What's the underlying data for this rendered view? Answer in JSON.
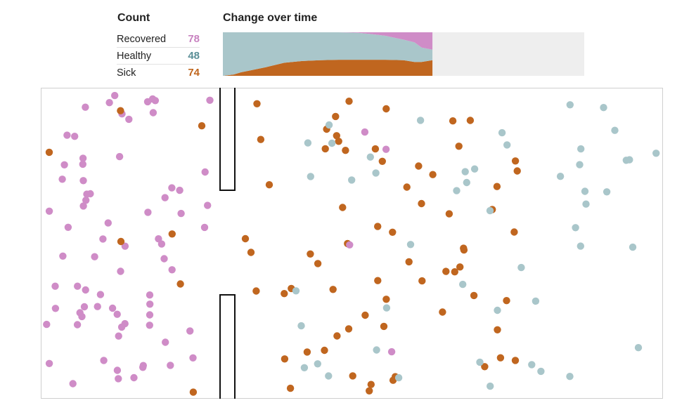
{
  "count": {
    "title": "Count",
    "rows": [
      {
        "label": "Recovered",
        "value": "78",
        "color": "#c882c0"
      },
      {
        "label": "Healthy",
        "value": "48",
        "color": "#5b8f97"
      },
      {
        "label": "Sick",
        "value": "74",
        "color": "#c0661d"
      }
    ]
  },
  "change_title": "Change over time",
  "colors": {
    "recovered": "#cf8cc7",
    "healthy": "#a9c6ca",
    "sick": "#c0661f",
    "future": "#eeeeee",
    "border": "#cfcfcf",
    "wall": "#111111"
  },
  "chart_data": {
    "type": "area",
    "title": "Change over time",
    "stacking": "cumulative share, bottom to top: Sick, Healthy, Recovered",
    "elapsed_fraction": 0.58,
    "x": [
      0,
      0.03,
      0.05,
      0.08,
      0.12,
      0.17,
      0.22,
      0.27,
      0.32,
      0.37,
      0.41,
      0.45,
      0.5,
      0.53,
      0.55,
      0.58
    ],
    "series": [
      {
        "name": "Sick",
        "values": [
          0.0,
          0.03,
          0.08,
          0.13,
          0.2,
          0.3,
          0.34,
          0.36,
          0.37,
          0.37,
          0.37,
          0.37,
          0.36,
          0.32,
          0.32,
          0.36
        ]
      },
      {
        "name": "Healthy",
        "values": [
          1.0,
          0.97,
          0.92,
          0.87,
          0.8,
          0.7,
          0.66,
          0.64,
          0.63,
          0.62,
          0.59,
          0.55,
          0.47,
          0.45,
          0.33,
          0.24
        ]
      },
      {
        "name": "Recovered",
        "values": [
          0.0,
          0.0,
          0.0,
          0.0,
          0.0,
          0.0,
          0.0,
          0.0,
          0.0,
          0.01,
          0.04,
          0.08,
          0.17,
          0.23,
          0.35,
          0.4
        ]
      }
    ]
  },
  "simulation": {
    "left_zone": [
      "R",
      "R",
      "R",
      "R",
      "R",
      "R",
      "R",
      "R",
      "R",
      "R",
      "R",
      "R",
      "R",
      "R",
      "R",
      "R",
      "R",
      "R",
      "R",
      "R",
      "R",
      "R",
      "R",
      "R",
      "R",
      "R",
      "R",
      "R",
      "R",
      "R",
      "R",
      "R",
      "R",
      "R",
      "R",
      "R",
      "R",
      "R",
      "R",
      "R",
      "R",
      "R",
      "R",
      "R",
      "R",
      "R",
      "R",
      "R",
      "R",
      "R",
      "R",
      "R",
      "R",
      "R",
      "R",
      "R",
      "R",
      "R",
      "R",
      "R",
      "R",
      "R",
      "R",
      "R",
      "R",
      "R",
      "R",
      "R",
      "R",
      "R",
      "R",
      "R",
      "R",
      "R",
      "S",
      "S",
      "S",
      "S",
      "S",
      "S",
      "S"
    ],
    "right_zone": [
      "S",
      "S",
      "S",
      "S",
      "S",
      "S",
      "S",
      "S",
      "S",
      "S",
      "S",
      "S",
      "S",
      "S",
      "S",
      "S",
      "S",
      "S",
      "S",
      "S",
      "S",
      "S",
      "S",
      "S",
      "S",
      "S",
      "S",
      "S",
      "S",
      "S",
      "S",
      "S",
      "S",
      "S",
      "S",
      "S",
      "S",
      "S",
      "S",
      "S",
      "S",
      "S",
      "S",
      "S",
      "S",
      "S",
      "S",
      "S",
      "S",
      "S",
      "S",
      "S",
      "S",
      "S",
      "S",
      "S",
      "S",
      "S",
      "S",
      "S",
      "S",
      "S",
      "S",
      "S",
      "S",
      "S",
      "S",
      "H",
      "H",
      "H",
      "H",
      "H",
      "H",
      "H",
      "H",
      "H",
      "H",
      "H",
      "H",
      "H",
      "H",
      "H",
      "H",
      "H",
      "H",
      "H",
      "H",
      "H",
      "H",
      "H",
      "H",
      "H",
      "H",
      "H",
      "H",
      "H",
      "H",
      "H",
      "H",
      "H",
      "H",
      "H",
      "H",
      "H",
      "H",
      "H",
      "H",
      "H",
      "H",
      "H",
      "H",
      "H",
      "H",
      "H",
      "H",
      "H",
      "R",
      "R",
      "R",
      "R"
    ]
  }
}
